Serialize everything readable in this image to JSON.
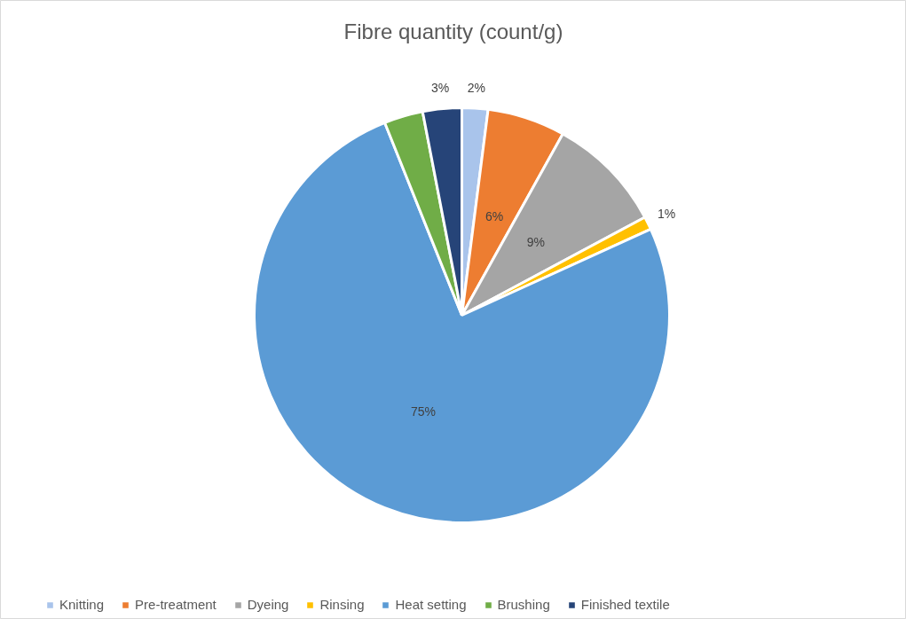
{
  "chart_data": {
    "type": "pie",
    "title": "Fibre quantity (count/g)",
    "categories": [
      "Knitting",
      "Pre-treatment",
      "Dyeing",
      "Rinsing",
      "Heat setting",
      "Brushing",
      "Finished textile"
    ],
    "values": [
      2,
      6,
      9,
      1,
      75,
      3,
      3
    ],
    "colors": [
      "#a9c4eb",
      "#ed7d31",
      "#a5a5a5",
      "#ffc000",
      "#5b9bd5",
      "#70ad47",
      "#264478"
    ],
    "value_labels": [
      "2%",
      "6%",
      "9%",
      "1%",
      "75%",
      null,
      "3%"
    ],
    "legend": "bottom"
  }
}
